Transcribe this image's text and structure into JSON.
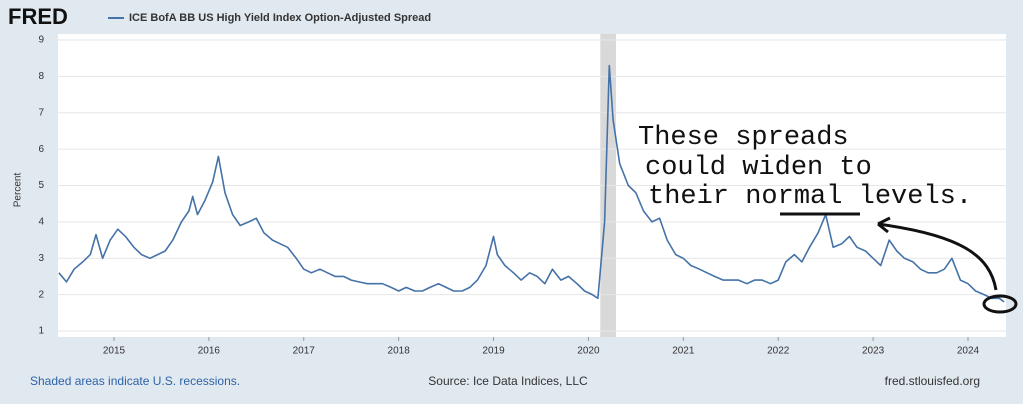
{
  "chart_data": {
    "type": "line",
    "logo": "FRED",
    "title": "ICE BofA BB US High Yield Index Option-Adjusted Spread",
    "y_label": "Percent",
    "recession_note": "Shaded areas indicate U.S. recessions.",
    "source": "Source: Ice Data Indices, LLC",
    "site": "fred.stlouisfed.org",
    "annotations": [
      "These spreads",
      "could widen to",
      "their normal levels."
    ],
    "recessions": [
      [
        2020.125,
        2020.29
      ]
    ],
    "grid": true,
    "xlim": [
      2014.41,
      2024.39
    ],
    "xticks": [
      2015,
      2016,
      2017,
      2018,
      2019,
      2020,
      2021,
      2022,
      2023,
      2024
    ],
    "ylim": [
      1,
      9
    ],
    "yticks": [
      1,
      2,
      3,
      4,
      5,
      6,
      7,
      8,
      9
    ],
    "x": [
      2014.42,
      2014.5,
      2014.58,
      2014.67,
      2014.75,
      2014.81,
      2014.88,
      2014.96,
      2015.04,
      2015.12,
      2015.21,
      2015.29,
      2015.38,
      2015.46,
      2015.54,
      2015.62,
      2015.71,
      2015.79,
      2015.83,
      2015.88,
      2015.96,
      2016.04,
      2016.1,
      2016.17,
      2016.25,
      2016.33,
      2016.42,
      2016.5,
      2016.58,
      2016.67,
      2016.75,
      2016.83,
      2016.92,
      2017.0,
      2017.08,
      2017.17,
      2017.25,
      2017.33,
      2017.42,
      2017.5,
      2017.58,
      2017.67,
      2017.75,
      2017.83,
      2017.92,
      2018.0,
      2018.08,
      2018.17,
      2018.25,
      2018.33,
      2018.42,
      2018.5,
      2018.58,
      2018.67,
      2018.75,
      2018.83,
      2018.92,
      2019.0,
      2019.04,
      2019.12,
      2019.21,
      2019.29,
      2019.38,
      2019.46,
      2019.54,
      2019.62,
      2019.71,
      2019.79,
      2019.88,
      2019.96,
      2020.04,
      2020.1,
      2020.17,
      2020.22,
      2020.26,
      2020.33,
      2020.42,
      2020.5,
      2020.58,
      2020.67,
      2020.75,
      2020.83,
      2020.92,
      2021.0,
      2021.08,
      2021.17,
      2021.25,
      2021.33,
      2021.42,
      2021.5,
      2021.58,
      2021.67,
      2021.75,
      2021.83,
      2021.92,
      2022.0,
      2022.08,
      2022.17,
      2022.25,
      2022.33,
      2022.42,
      2022.5,
      2022.58,
      2022.67,
      2022.75,
      2022.83,
      2022.92,
      2023.0,
      2023.08,
      2023.17,
      2023.25,
      2023.33,
      2023.42,
      2023.5,
      2023.58,
      2023.67,
      2023.75,
      2023.83,
      2023.92,
      2024.0,
      2024.08,
      2024.17,
      2024.25,
      2024.33,
      2024.38
    ],
    "series": [
      {
        "name": "ICE BofA BB US High Yield Index Option-Adjusted Spread",
        "color": "#4572a7",
        "values": [
          2.6,
          2.35,
          2.7,
          2.9,
          3.1,
          3.65,
          3.0,
          3.5,
          3.8,
          3.6,
          3.3,
          3.1,
          3.0,
          3.1,
          3.2,
          3.5,
          4.0,
          4.3,
          4.7,
          4.2,
          4.6,
          5.1,
          5.8,
          4.8,
          4.2,
          3.9,
          4.0,
          4.1,
          3.7,
          3.5,
          3.4,
          3.3,
          3.0,
          2.7,
          2.6,
          2.7,
          2.6,
          2.5,
          2.5,
          2.4,
          2.35,
          2.3,
          2.3,
          2.3,
          2.2,
          2.1,
          2.2,
          2.1,
          2.1,
          2.2,
          2.3,
          2.2,
          2.1,
          2.1,
          2.2,
          2.4,
          2.8,
          3.6,
          3.1,
          2.8,
          2.6,
          2.4,
          2.6,
          2.5,
          2.3,
          2.7,
          2.4,
          2.5,
          2.3,
          2.1,
          2.0,
          1.9,
          4.0,
          8.3,
          6.8,
          5.6,
          5.0,
          4.8,
          4.3,
          4.0,
          4.1,
          3.5,
          3.1,
          3.0,
          2.8,
          2.7,
          2.6,
          2.5,
          2.4,
          2.4,
          2.4,
          2.3,
          2.4,
          2.4,
          2.3,
          2.4,
          2.9,
          3.1,
          2.9,
          3.3,
          3.7,
          4.2,
          3.3,
          3.4,
          3.6,
          3.3,
          3.2,
          3.0,
          2.8,
          3.5,
          3.2,
          3.0,
          2.9,
          2.7,
          2.6,
          2.6,
          2.7,
          3.0,
          2.4,
          2.3,
          2.1,
          2.0,
          1.9,
          1.9,
          1.8
        ]
      }
    ]
  }
}
